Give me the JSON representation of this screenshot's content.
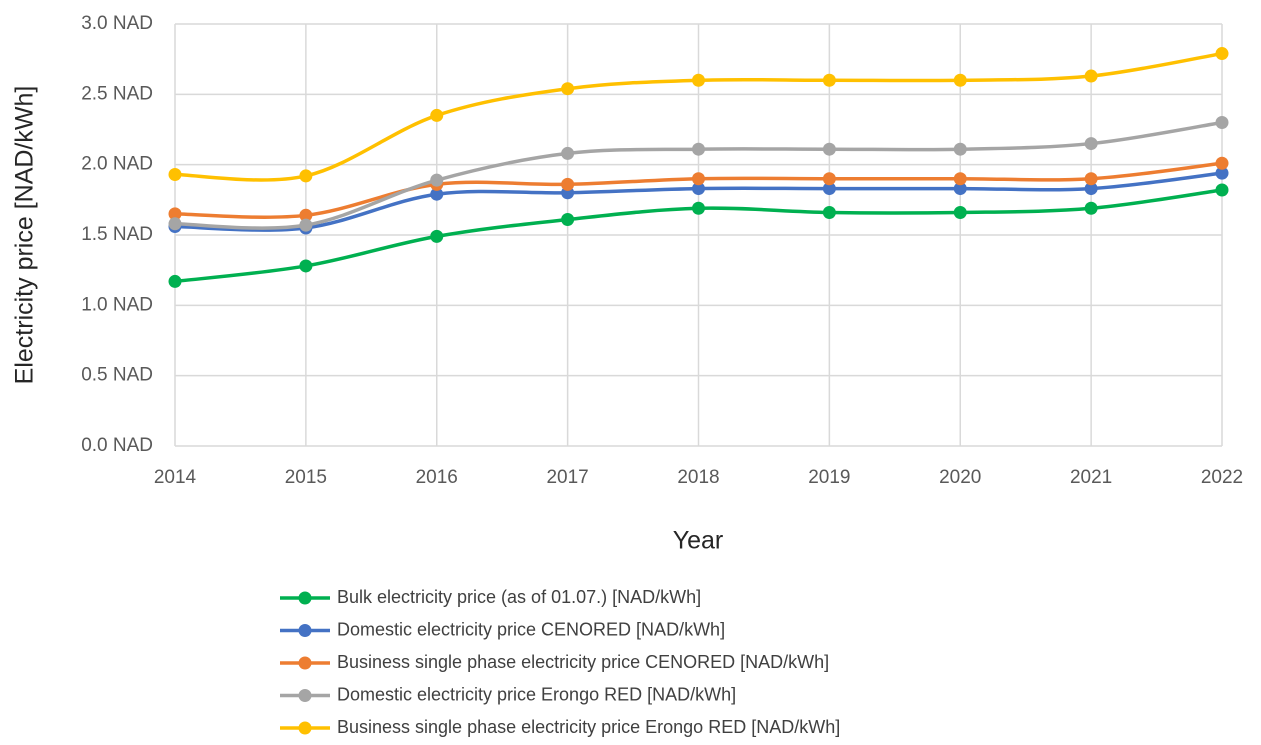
{
  "chart_data": {
    "type": "line",
    "x": [
      2014,
      2015,
      2016,
      2017,
      2018,
      2019,
      2020,
      2021,
      2022
    ],
    "xlim": [
      2014,
      2022
    ],
    "xticks": [
      2014,
      2015,
      2016,
      2017,
      2018,
      2019,
      2020,
      2021,
      2022
    ],
    "ylim": [
      0,
      3
    ],
    "yticks": [
      {
        "value": 0,
        "label": "0.0 NAD"
      },
      {
        "value": 0.5,
        "label": "0.5 NAD"
      },
      {
        "value": 1,
        "label": "1.0 NAD"
      },
      {
        "value": 1.5,
        "label": "1.5 NAD"
      },
      {
        "value": 2,
        "label": "2.0 NAD"
      },
      {
        "value": 2.5,
        "label": "2.5 NAD"
      },
      {
        "value": 3,
        "label": "3.0 NAD"
      }
    ],
    "x_label": "Year",
    "y_label": "Electricity price [NAD/kWh]",
    "grid": true,
    "smooth": true,
    "legend": "bottom",
    "series": [
      {
        "name": "Bulk electricity price (as of 01.07.) [NAD/kWh]",
        "color": "#00b050",
        "values": [
          1.17,
          1.28,
          1.49,
          1.61,
          1.69,
          1.66,
          1.66,
          1.69,
          1.82
        ]
      },
      {
        "name": "Domestic electricity price CENORED [NAD/kWh]",
        "color": "#4472c4",
        "values": [
          1.56,
          1.55,
          1.79,
          1.8,
          1.83,
          1.83,
          1.83,
          1.83,
          1.94
        ]
      },
      {
        "name": "Business single phase electricity price CENORED [NAD/kWh]",
        "color": "#ed7d31",
        "values": [
          1.65,
          1.64,
          1.86,
          1.86,
          1.9,
          1.9,
          1.9,
          1.9,
          2.01
        ]
      },
      {
        "name": "Domestic electricity price Erongo RED [NAD/kWh]",
        "color": "#a5a5a5",
        "values": [
          1.58,
          1.57,
          1.89,
          2.08,
          2.11,
          2.11,
          2.11,
          2.15,
          2.3
        ]
      },
      {
        "name": "Business single phase electricity price Erongo RED [NAD/kWh]",
        "color": "#ffc000",
        "values": [
          1.93,
          1.92,
          2.35,
          2.54,
          2.6,
          2.6,
          2.6,
          2.63,
          2.79
        ]
      }
    ]
  }
}
